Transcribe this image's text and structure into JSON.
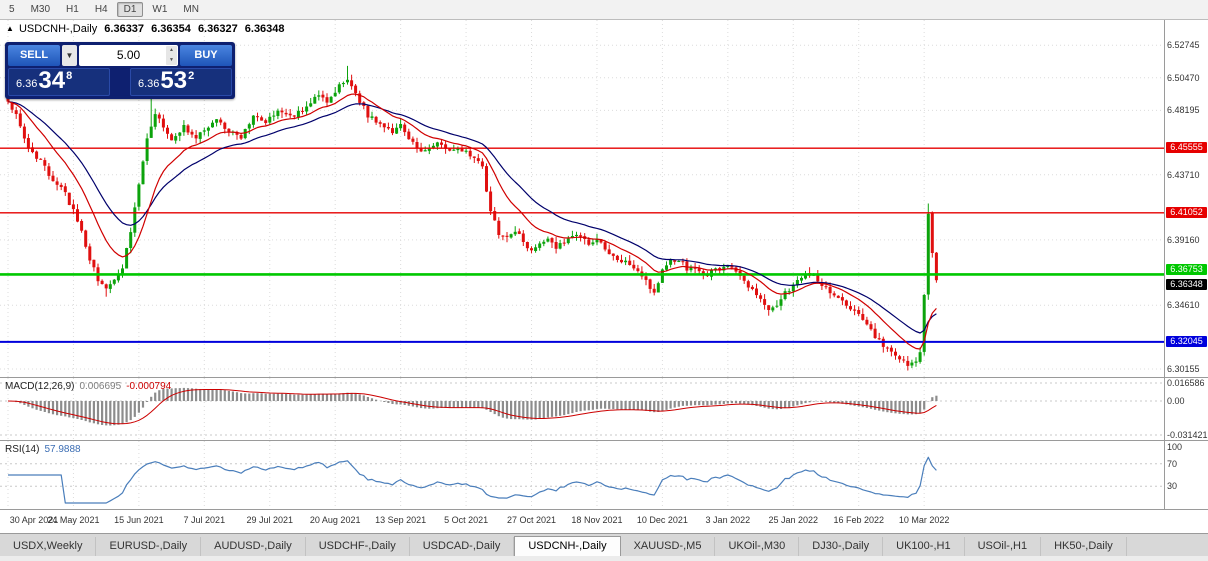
{
  "toolbar": {
    "timeframes": [
      "5",
      "M30",
      "H1",
      "H4",
      "D1",
      "W1",
      "MN"
    ],
    "active": "D1"
  },
  "chart": {
    "title": {
      "collapse_icon": "▲",
      "symbol": "USDCNH-,Daily",
      "open": "6.36337",
      "high": "6.36354",
      "low": "6.36327",
      "close": "6.36348"
    },
    "trade_panel": {
      "sell_label": "SELL",
      "buy_label": "BUY",
      "volume": "5.00",
      "sell_price": {
        "prefix": "6.36",
        "big": "34",
        "sup": "8"
      },
      "buy_price": {
        "prefix": "6.36",
        "big": "53",
        "sup": "2"
      }
    },
    "price_axis": {
      "ticks": [
        {
          "label": "6.52745",
          "price": 6.52745
        },
        {
          "label": "6.50470",
          "price": 6.5047
        },
        {
          "label": "6.48195",
          "price": 6.48195
        },
        {
          "label": "6.43710",
          "price": 6.4371
        },
        {
          "label": "6.39160",
          "price": 6.3916
        },
        {
          "label": "6.34610",
          "price": 6.3461
        },
        {
          "label": "6.30155",
          "price": 6.30155
        }
      ],
      "lines": [
        {
          "label": "6.45555",
          "price": 6.45555,
          "color": "#e60000",
          "width": 1.4
        },
        {
          "label": "6.41052",
          "price": 6.41052,
          "color": "#e60000",
          "width": 1.4
        },
        {
          "label": "6.36753",
          "price": 6.36753,
          "color": "#00c800",
          "width": 2.6,
          "label_offset": -10
        },
        {
          "label": "6.32045",
          "price": 6.32045,
          "color": "#0000dc",
          "width": 2.0
        }
      ],
      "current": {
        "label": "6.36348",
        "price": 6.36348,
        "color": "#000000",
        "label_offset": -1
      }
    },
    "x_axis": {
      "labels": [
        {
          "text": "30 Apr 2021",
          "i": 0
        },
        {
          "text": "24 May 2021",
          "i": 16
        },
        {
          "text": "15 Jun 2021",
          "i": 32
        },
        {
          "text": "7 Jul 2021",
          "i": 48
        },
        {
          "text": "29 Jul 2021",
          "i": 64
        },
        {
          "text": "20 Aug 2021",
          "i": 80
        },
        {
          "text": "13 Sep 2021",
          "i": 96
        },
        {
          "text": "5 Oct 2021",
          "i": 112
        },
        {
          "text": "27 Oct 2021",
          "i": 128
        },
        {
          "text": "18 Nov 2021",
          "i": 144
        },
        {
          "text": "10 Dec 2021",
          "i": 160
        },
        {
          "text": "3 Jan 2022",
          "i": 176
        },
        {
          "text": "25 Jan 2022",
          "i": 192
        },
        {
          "text": "16 Feb 2022",
          "i": 208
        },
        {
          "text": "10 Mar 2022",
          "i": 224
        }
      ]
    },
    "colors": {
      "up": "#0ca30c",
      "down": "#e01010",
      "ma_fast": "#d00000",
      "ma_slow": "#00006b",
      "grid": "#dcdcdc"
    }
  },
  "chart_data": {
    "type": "candlestick",
    "symbol": "USDCNH-,Daily",
    "count": 228,
    "noise": 0.0038,
    "price_range": {
      "top": 6.545,
      "bottom": 6.296
    },
    "anchors": [
      [
        0,
        6.487
      ],
      [
        2,
        6.478
      ],
      [
        4,
        6.461
      ],
      [
        6,
        6.452
      ],
      [
        8,
        6.446
      ],
      [
        10,
        6.437
      ],
      [
        13,
        6.429
      ],
      [
        16,
        6.412
      ],
      [
        18,
        6.398
      ],
      [
        20,
        6.379
      ],
      [
        22,
        6.364
      ],
      [
        24,
        6.357
      ],
      [
        26,
        6.362
      ],
      [
        28,
        6.373
      ],
      [
        30,
        6.397
      ],
      [
        32,
        6.431
      ],
      [
        34,
        6.463
      ],
      [
        36,
        6.478
      ],
      [
        38,
        6.471
      ],
      [
        40,
        6.462
      ],
      [
        43,
        6.47
      ],
      [
        46,
        6.463
      ],
      [
        48,
        6.467
      ],
      [
        51,
        6.475
      ],
      [
        54,
        6.468
      ],
      [
        57,
        6.462
      ],
      [
        60,
        6.479
      ],
      [
        63,
        6.473
      ],
      [
        66,
        6.482
      ],
      [
        69,
        6.477
      ],
      [
        72,
        6.482
      ],
      [
        75,
        6.492
      ],
      [
        78,
        6.488
      ],
      [
        81,
        6.499
      ],
      [
        83,
        6.504
      ],
      [
        85,
        6.494
      ],
      [
        88,
        6.478
      ],
      [
        91,
        6.472
      ],
      [
        94,
        6.467
      ],
      [
        96,
        6.471
      ],
      [
        99,
        6.459
      ],
      [
        102,
        6.453
      ],
      [
        105,
        6.461
      ],
      [
        108,
        6.452
      ],
      [
        111,
        6.455
      ],
      [
        114,
        6.45
      ],
      [
        116,
        6.441
      ],
      [
        118,
        6.413
      ],
      [
        120,
        6.396
      ],
      [
        122,
        6.392
      ],
      [
        124,
        6.399
      ],
      [
        126,
        6.389
      ],
      [
        128,
        6.383
      ],
      [
        130,
        6.39
      ],
      [
        132,
        6.394
      ],
      [
        134,
        6.387
      ],
      [
        136,
        6.39
      ],
      [
        138,
        6.396
      ],
      [
        140,
        6.393
      ],
      [
        142,
        6.388
      ],
      [
        144,
        6.391
      ],
      [
        146,
        6.385
      ],
      [
        148,
        6.381
      ],
      [
        150,
        6.377
      ],
      [
        152,
        6.374
      ],
      [
        154,
        6.368
      ],
      [
        156,
        6.362
      ],
      [
        158,
        6.355
      ],
      [
        160,
        6.371
      ],
      [
        162,
        6.376
      ],
      [
        164,
        6.378
      ],
      [
        166,
        6.372
      ],
      [
        168,
        6.37
      ],
      [
        170,
        6.367
      ],
      [
        172,
        6.369
      ],
      [
        174,
        6.372
      ],
      [
        176,
        6.374
      ],
      [
        178,
        6.368
      ],
      [
        180,
        6.363
      ],
      [
        182,
        6.356
      ],
      [
        184,
        6.35
      ],
      [
        186,
        6.341
      ],
      [
        188,
        6.347
      ],
      [
        190,
        6.354
      ],
      [
        192,
        6.36
      ],
      [
        194,
        6.365
      ],
      [
        196,
        6.368
      ],
      [
        198,
        6.363
      ],
      [
        200,
        6.359
      ],
      [
        202,
        6.353
      ],
      [
        204,
        6.348
      ],
      [
        206,
        6.344
      ],
      [
        208,
        6.339
      ],
      [
        210,
        6.332
      ],
      [
        212,
        6.325
      ],
      [
        214,
        6.318
      ],
      [
        216,
        6.312
      ],
      [
        218,
        6.307
      ],
      [
        220,
        6.305
      ],
      [
        222,
        6.308
      ],
      [
        223,
        6.312
      ],
      [
        224,
        6.352
      ],
      [
        225,
        6.408
      ],
      [
        226,
        6.382
      ],
      [
        227,
        6.3635
      ]
    ],
    "extremes": [
      {
        "i": 0,
        "high": 6.498
      },
      {
        "i": 24,
        "low": 6.352
      },
      {
        "i": 35,
        "high": 6.492
      },
      {
        "i": 83,
        "high": 6.513
      },
      {
        "i": 220,
        "low": 6.3015
      },
      {
        "i": 225,
        "high": 6.417
      }
    ]
  },
  "macd": {
    "label": "MACD(12,26,9)",
    "main_value": "0.006695",
    "signal_value": "-0.000794",
    "fast": 12,
    "slow": 26,
    "signal": 9,
    "axis": [
      {
        "label": "0.016586",
        "value": 0.016586
      },
      {
        "label": "0.00",
        "value": 0
      },
      {
        "label": "-0.031421",
        "value": -0.031421
      }
    ],
    "scale": {
      "max": 0.016586,
      "min": -0.031421
    },
    "colors": {
      "hist": "#8c8c8c",
      "signal": "#cc0000"
    }
  },
  "rsi": {
    "label": "RSI(14)",
    "value": "57.9888",
    "period": 14,
    "levels": [
      {
        "label": "100",
        "value": 100,
        "dashed": false
      },
      {
        "label": "70",
        "value": 70,
        "dashed": true
      },
      {
        "label": "30",
        "value": 30,
        "dashed": true
      }
    ],
    "scale": {
      "max": 100,
      "min": 0
    },
    "color": "#4a7ebb"
  },
  "tabs": {
    "active": "USDCNH-,Daily",
    "items": [
      "USDX,Weekly",
      "EURUSD-,Daily",
      "AUDUSD-,Daily",
      "USDCHF-,Daily",
      "USDCAD-,Daily",
      "USDCNH-,Daily",
      "XAUUSD-,M5",
      "UKOil-,M30",
      "DJ30-,Daily",
      "UK100-,H1",
      "USOil-,H1",
      "HK50-,Daily"
    ]
  }
}
